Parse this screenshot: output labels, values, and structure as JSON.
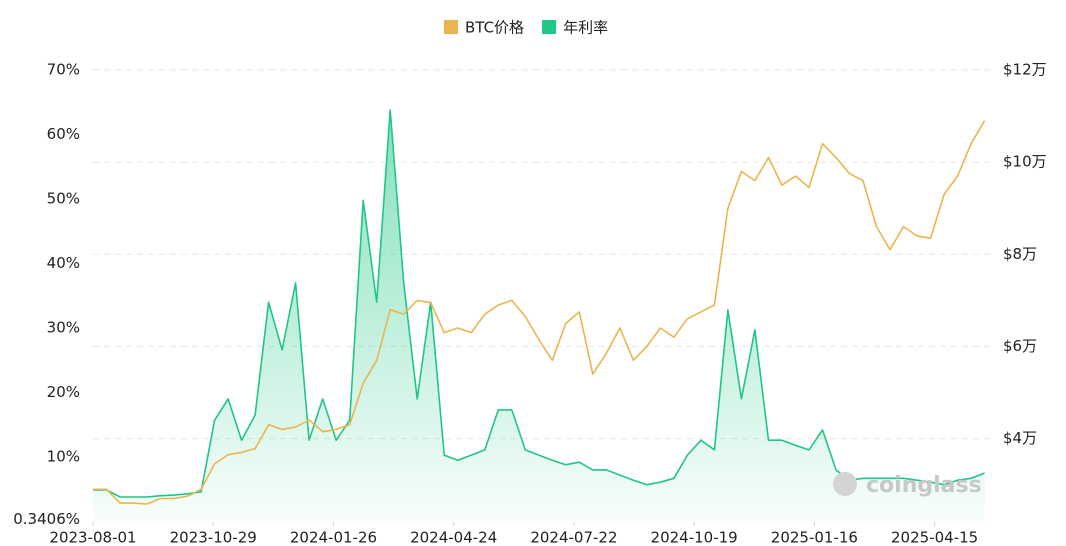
{
  "chart_data": {
    "type": "line",
    "legend": "top",
    "watermark": "coinglass",
    "x": [
      "2023-08-01",
      "2023-08-11",
      "2023-08-21",
      "2023-08-31",
      "2023-09-10",
      "2023-09-20",
      "2023-09-30",
      "2023-10-10",
      "2023-10-20",
      "2023-10-30",
      "2023-11-09",
      "2023-11-19",
      "2023-11-29",
      "2023-12-09",
      "2023-12-19",
      "2023-12-29",
      "2024-01-08",
      "2024-01-18",
      "2024-01-28",
      "2024-02-07",
      "2024-02-17",
      "2024-02-27",
      "2024-03-08",
      "2024-03-18",
      "2024-03-28",
      "2024-04-07",
      "2024-04-17",
      "2024-04-27",
      "2024-05-07",
      "2024-05-17",
      "2024-05-27",
      "2024-06-06",
      "2024-06-16",
      "2024-06-26",
      "2024-07-06",
      "2024-07-16",
      "2024-07-26",
      "2024-08-05",
      "2024-08-15",
      "2024-08-25",
      "2024-09-04",
      "2024-09-14",
      "2024-09-24",
      "2024-10-04",
      "2024-10-14",
      "2024-10-24",
      "2024-11-03",
      "2024-11-13",
      "2024-11-23",
      "2024-12-03",
      "2024-12-13",
      "2024-12-23",
      "2025-01-02",
      "2025-01-12",
      "2025-01-22",
      "2025-02-01",
      "2025-02-11",
      "2025-02-21",
      "2025-03-03",
      "2025-03-13",
      "2025-03-23",
      "2025-04-02",
      "2025-04-12",
      "2025-04-22",
      "2025-05-02",
      "2025-05-12",
      "2025-05-22"
    ],
    "xlim": [
      "2023-08-01",
      "2025-05-26"
    ],
    "xticks": [
      "2023-08-01",
      "2023-10-29",
      "2024-01-26",
      "2024-04-24",
      "2024-07-22",
      "2024-10-19",
      "2025-01-16",
      "2025-04-15"
    ],
    "series": [
      {
        "name": "BTC价格",
        "color": "#e9b64d",
        "axis": "y2",
        "values": [
          29000,
          29000,
          26000,
          26000,
          25800,
          27000,
          27000,
          27500,
          29000,
          34500,
          36500,
          37000,
          37800,
          43000,
          42000,
          42500,
          44000,
          41500,
          42000,
          43000,
          52000,
          57000,
          68000,
          67000,
          70000,
          69500,
          63000,
          64000,
          63000,
          67000,
          69000,
          70000,
          66500,
          61500,
          57000,
          65000,
          67500,
          54000,
          58500,
          64000,
          57000,
          60000,
          64000,
          62000,
          66000,
          67500,
          69000,
          90000,
          98000,
          96000,
          101000,
          95000,
          97000,
          94500,
          104000,
          101000,
          97500,
          96000,
          86000,
          81000,
          86000,
          84000,
          83500,
          93000,
          97000,
          104000,
          109000
        ]
      },
      {
        "name": "年利率",
        "color": "#1ec785",
        "fill": true,
        "values": [
          4.9,
          4.9,
          3.8,
          3.8,
          3.8,
          4.0,
          4.1,
          4.3,
          4.6,
          15.7,
          19,
          12.6,
          16.5,
          34,
          26.6,
          37,
          12.6,
          19,
          12.6,
          15.7,
          49.8,
          34,
          63.8,
          37,
          19,
          34,
          10.3,
          9.5,
          10.3,
          11.1,
          17.3,
          17.3,
          11.1,
          10.3,
          9.5,
          8.8,
          9.2,
          8,
          8,
          7.2,
          6.4,
          5.7,
          6.1,
          6.7,
          10.3,
          12.6,
          11.1,
          32.8,
          19,
          29.7,
          12.6,
          12.6,
          11.8,
          11.1,
          14.2,
          8,
          6.4,
          6.7,
          6.7,
          6.7,
          6.7,
          6.4,
          6.1,
          5.7,
          6.4,
          6.7,
          7.5
        ]
      }
    ],
    "ylim": [
      0,
      70
    ],
    "yticks": [
      {
        "value": 0.3406,
        "label": "0.3406%"
      },
      {
        "value": 10,
        "label": "10%"
      },
      {
        "value": 20,
        "label": "20%"
      },
      {
        "value": 30,
        "label": "30%"
      },
      {
        "value": 40,
        "label": "40%"
      },
      {
        "value": 50,
        "label": "50%"
      },
      {
        "value": 60,
        "label": "60%"
      },
      {
        "value": 70,
        "label": "70%"
      }
    ],
    "y2lim": [
      22000,
      120000
    ],
    "y2ticks": [
      {
        "value": 40000,
        "label": "$4万"
      },
      {
        "value": 60000,
        "label": "$6万"
      },
      {
        "value": 80000,
        "label": "$8万"
      },
      {
        "value": 100000,
        "label": "$10万"
      },
      {
        "value": 120000,
        "label": "$12万"
      }
    ],
    "grid": true
  }
}
